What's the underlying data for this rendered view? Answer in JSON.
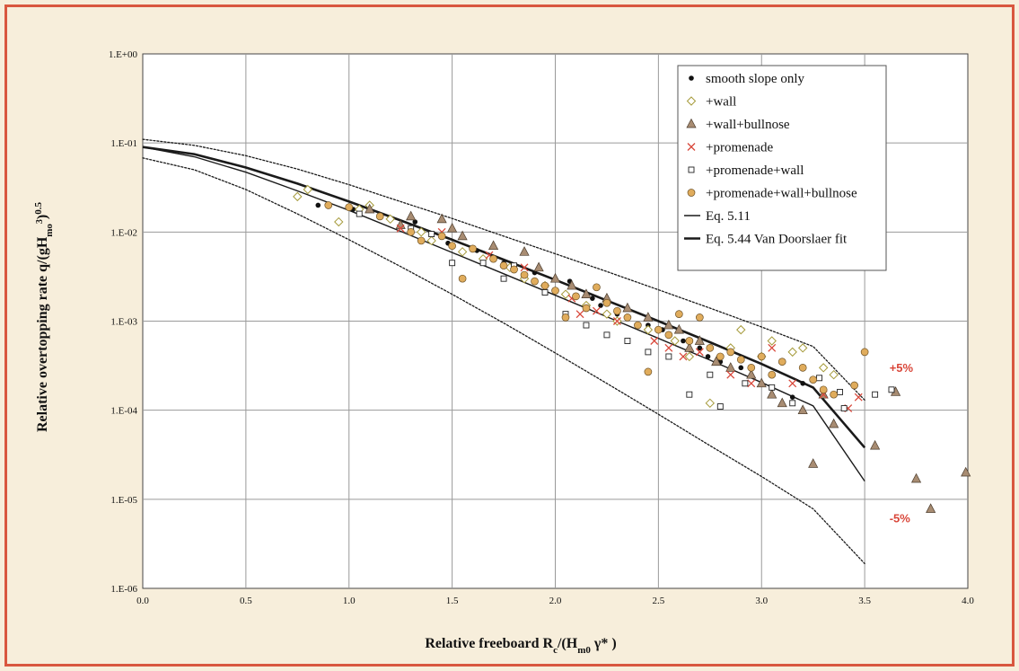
{
  "chart_data": {
    "type": "scatter",
    "x_label": "Relative freeboard",
    "x_label_sym": "R",
    "x_label_sub1": "c",
    "x_label_mid": "/(H",
    "x_label_sub2": "m0",
    "x_label_end": " γ* )",
    "y_label": "Relative overtopping rate q/(gH",
    "y_label_sub": "mo",
    "y_label_sup1": "3",
    "y_label_close": ")",
    "y_label_sup2": "0.5",
    "xlim": [
      0.0,
      4.0
    ],
    "ylim": [
      1e-06,
      1.0
    ],
    "y_scale": "log",
    "grid": true,
    "legend_position": "top-right",
    "x_ticks": [
      {
        "v": 0.0,
        "label": "0.0"
      },
      {
        "v": 0.5,
        "label": "0.5"
      },
      {
        "v": 1.0,
        "label": "1.0"
      },
      {
        "v": 1.5,
        "label": "1.5"
      },
      {
        "v": 2.0,
        "label": "2.0"
      },
      {
        "v": 2.5,
        "label": "2.5"
      },
      {
        "v": 3.0,
        "label": "3.0"
      },
      {
        "v": 3.5,
        "label": "3.5"
      },
      {
        "v": 4.0,
        "label": "4.0"
      }
    ],
    "y_ticks": [
      {
        "v": 1.0,
        "label": "1.E+00"
      },
      {
        "v": 0.1,
        "label": "1.E-01"
      },
      {
        "v": 0.01,
        "label": "1.E-02"
      },
      {
        "v": 0.001,
        "label": "1.E-03"
      },
      {
        "v": 0.0001,
        "label": "1.E-04"
      },
      {
        "v": 1e-05,
        "label": "1.E-05"
      },
      {
        "v": 1e-06,
        "label": "1.E-06"
      }
    ],
    "series": [
      {
        "name": "smooth slope only",
        "marker": "dot",
        "color": "#111111",
        "points": [
          [
            0.85,
            0.02
          ],
          [
            1.02,
            0.018
          ],
          [
            1.32,
            0.013
          ],
          [
            1.48,
            0.0075
          ],
          [
            1.62,
            0.0062
          ],
          [
            1.75,
            0.0045
          ],
          [
            1.9,
            0.0035
          ],
          [
            2.07,
            0.0028
          ],
          [
            2.18,
            0.0018
          ],
          [
            2.22,
            0.0015
          ],
          [
            2.3,
            0.0012
          ],
          [
            2.45,
            0.0009
          ],
          [
            2.52,
            0.0008
          ],
          [
            2.62,
            0.0006
          ],
          [
            2.7,
            0.0005
          ],
          [
            2.74,
            0.0004
          ],
          [
            2.8,
            0.00035
          ],
          [
            2.9,
            0.0003
          ],
          [
            3.15,
            0.00014
          ],
          [
            3.2,
            0.0002
          ]
        ]
      },
      {
        "name": "+wall",
        "marker": "diamond-open",
        "color": "#a59a3a",
        "points": [
          [
            0.75,
            0.025
          ],
          [
            0.8,
            0.03
          ],
          [
            0.95,
            0.013
          ],
          [
            1.05,
            0.018
          ],
          [
            1.1,
            0.02
          ],
          [
            1.2,
            0.014
          ],
          [
            1.35,
            0.01
          ],
          [
            1.4,
            0.008
          ],
          [
            1.55,
            0.006
          ],
          [
            1.65,
            0.005
          ],
          [
            1.78,
            0.004
          ],
          [
            1.85,
            0.003
          ],
          [
            1.95,
            0.0025
          ],
          [
            2.05,
            0.002
          ],
          [
            2.15,
            0.0015
          ],
          [
            2.25,
            0.0012
          ],
          [
            2.3,
            0.001
          ],
          [
            2.45,
            0.0008
          ],
          [
            2.58,
            0.0006
          ],
          [
            2.65,
            0.0004
          ],
          [
            2.75,
            0.00012
          ],
          [
            2.85,
            0.0005
          ],
          [
            2.9,
            0.0008
          ],
          [
            3.0,
            0.0004
          ],
          [
            3.05,
            0.0006
          ],
          [
            3.15,
            0.00045
          ],
          [
            3.2,
            0.0005
          ],
          [
            3.3,
            0.0003
          ],
          [
            3.35,
            0.00025
          ]
        ]
      },
      {
        "name": "+wall+bullnose",
        "marker": "triangle",
        "color": "#a88c72",
        "points": [
          [
            1.1,
            0.018
          ],
          [
            1.25,
            0.012
          ],
          [
            1.3,
            0.015
          ],
          [
            1.45,
            0.014
          ],
          [
            1.5,
            0.011
          ],
          [
            1.55,
            0.009
          ],
          [
            1.7,
            0.007
          ],
          [
            1.85,
            0.006
          ],
          [
            1.92,
            0.004
          ],
          [
            2.0,
            0.003
          ],
          [
            2.08,
            0.0025
          ],
          [
            2.15,
            0.002
          ],
          [
            2.25,
            0.0018
          ],
          [
            2.35,
            0.0014
          ],
          [
            2.45,
            0.0011
          ],
          [
            2.55,
            0.0009
          ],
          [
            2.6,
            0.0008
          ],
          [
            2.65,
            0.0005
          ],
          [
            2.7,
            0.0006
          ],
          [
            2.78,
            0.00035
          ],
          [
            2.85,
            0.0003
          ],
          [
            2.95,
            0.00025
          ],
          [
            3.0,
            0.0002
          ],
          [
            3.05,
            0.00015
          ],
          [
            3.1,
            0.00012
          ],
          [
            3.2,
            0.0001
          ],
          [
            3.25,
            2.5e-05
          ],
          [
            3.3,
            0.00015
          ],
          [
            3.35,
            7e-05
          ],
          [
            3.55,
            4e-05
          ],
          [
            3.65,
            0.00016
          ],
          [
            3.75,
            1.7e-05
          ],
          [
            3.82,
            7.8e-06
          ],
          [
            3.99,
            2e-05
          ]
        ]
      },
      {
        "name": "+promenade",
        "marker": "cross",
        "color": "#d9473a",
        "points": [
          [
            1.25,
            0.011
          ],
          [
            1.45,
            0.01
          ],
          [
            1.68,
            0.0055
          ],
          [
            1.85,
            0.004
          ],
          [
            2.08,
            0.0018
          ],
          [
            2.12,
            0.0012
          ],
          [
            2.2,
            0.0013
          ],
          [
            2.3,
            0.001
          ],
          [
            2.48,
            0.0006
          ],
          [
            2.55,
            0.0005
          ],
          [
            2.62,
            0.0004
          ],
          [
            2.7,
            0.00045
          ],
          [
            2.85,
            0.00025
          ],
          [
            2.95,
            0.0002
          ],
          [
            3.05,
            0.0005
          ],
          [
            3.15,
            0.0002
          ],
          [
            3.3,
            0.00015
          ],
          [
            3.42,
            0.000105
          ],
          [
            3.47,
            0.00014
          ]
        ]
      },
      {
        "name": "+promenade+wall",
        "marker": "square-open",
        "color": "#222222",
        "points": [
          [
            1.05,
            0.016
          ],
          [
            1.3,
            0.011
          ],
          [
            1.4,
            0.0095
          ],
          [
            1.5,
            0.0045
          ],
          [
            1.65,
            0.0045
          ],
          [
            1.75,
            0.003
          ],
          [
            1.8,
            0.0042
          ],
          [
            1.95,
            0.0021
          ],
          [
            2.05,
            0.0012
          ],
          [
            2.15,
            0.0009
          ],
          [
            2.25,
            0.0007
          ],
          [
            2.35,
            0.0006
          ],
          [
            2.45,
            0.00045
          ],
          [
            2.55,
            0.0004
          ],
          [
            2.65,
            0.00015
          ],
          [
            2.75,
            0.00025
          ],
          [
            2.8,
            0.00011
          ],
          [
            2.92,
            0.0002
          ],
          [
            3.05,
            0.00018
          ],
          [
            3.15,
            0.00012
          ],
          [
            3.28,
            0.00023
          ],
          [
            3.38,
            0.00016
          ],
          [
            3.4,
            0.000105
          ],
          [
            3.55,
            0.00015
          ],
          [
            3.63,
            0.00017
          ]
        ]
      },
      {
        "name": "+promenade+wall+bullnose",
        "marker": "circle",
        "color": "#e0ac5c",
        "points": [
          [
            0.9,
            0.02
          ],
          [
            1.0,
            0.019
          ],
          [
            1.15,
            0.015
          ],
          [
            1.3,
            0.01
          ],
          [
            1.35,
            0.008
          ],
          [
            1.45,
            0.009
          ],
          [
            1.5,
            0.007
          ],
          [
            1.55,
            0.003
          ],
          [
            1.6,
            0.0065
          ],
          [
            1.7,
            0.005
          ],
          [
            1.75,
            0.0042
          ],
          [
            1.8,
            0.0038
          ],
          [
            1.85,
            0.0033
          ],
          [
            1.9,
            0.0028
          ],
          [
            1.95,
            0.0025
          ],
          [
            2.0,
            0.0022
          ],
          [
            2.05,
            0.0011
          ],
          [
            2.1,
            0.0019
          ],
          [
            2.15,
            0.0014
          ],
          [
            2.2,
            0.0024
          ],
          [
            2.25,
            0.0016
          ],
          [
            2.3,
            0.0013
          ],
          [
            2.35,
            0.0011
          ],
          [
            2.4,
            0.0009
          ],
          [
            2.45,
            0.00027
          ],
          [
            2.5,
            0.0008
          ],
          [
            2.55,
            0.0007
          ],
          [
            2.6,
            0.0012
          ],
          [
            2.65,
            0.0006
          ],
          [
            2.7,
            0.0011
          ],
          [
            2.75,
            0.0005
          ],
          [
            2.8,
            0.0004
          ],
          [
            2.85,
            0.00045
          ],
          [
            2.9,
            0.00037
          ],
          [
            2.95,
            0.0003
          ],
          [
            3.0,
            0.0004
          ],
          [
            3.05,
            0.00025
          ],
          [
            3.1,
            0.00035
          ],
          [
            3.2,
            0.0003
          ],
          [
            3.25,
            0.00022
          ],
          [
            3.3,
            0.00017
          ],
          [
            3.35,
            0.00015
          ],
          [
            3.45,
            0.00019
          ],
          [
            3.5,
            0.00045
          ]
        ]
      }
    ],
    "lines": [
      {
        "name": "Eq. 5.11",
        "width": 1.4,
        "dash": "",
        "in_legend": true,
        "points": [
          [
            0.0,
            0.09
          ],
          [
            0.25,
            0.07
          ],
          [
            0.5,
            0.047
          ],
          [
            0.75,
            0.029
          ],
          [
            1.0,
            0.0175
          ],
          [
            1.25,
            0.0102
          ],
          [
            1.5,
            0.0059
          ],
          [
            1.75,
            0.0034
          ],
          [
            2.0,
            0.00195
          ],
          [
            2.25,
            0.00112
          ],
          [
            2.5,
            0.00064
          ],
          [
            2.75,
            0.000365
          ],
          [
            3.0,
            0.000205
          ],
          [
            3.25,
            0.000112
          ],
          [
            3.5,
            1.6e-05
          ]
        ]
      },
      {
        "name": "Eq. 5.44 Van Doorslaer fit",
        "width": 2.6,
        "dash": "",
        "in_legend": true,
        "points": [
          [
            0.0,
            0.09
          ],
          [
            0.25,
            0.075
          ],
          [
            0.5,
            0.053
          ],
          [
            0.75,
            0.035
          ],
          [
            1.0,
            0.022
          ],
          [
            1.25,
            0.0135
          ],
          [
            1.5,
            0.0082
          ],
          [
            1.75,
            0.0049
          ],
          [
            2.0,
            0.0029
          ],
          [
            2.25,
            0.0017
          ],
          [
            2.5,
            0.001
          ],
          [
            2.75,
            0.00058
          ],
          [
            3.0,
            0.00033
          ],
          [
            3.25,
            0.00018
          ],
          [
            3.5,
            3.8e-05
          ]
        ]
      },
      {
        "name": "+5%",
        "width": 1.3,
        "dash": "2,2",
        "in_legend": false,
        "points": [
          [
            0.0,
            0.11
          ],
          [
            0.25,
            0.094
          ],
          [
            0.5,
            0.072
          ],
          [
            0.75,
            0.051
          ],
          [
            1.0,
            0.034
          ],
          [
            1.25,
            0.022
          ],
          [
            1.5,
            0.0142
          ],
          [
            1.75,
            0.009
          ],
          [
            2.0,
            0.0057
          ],
          [
            2.25,
            0.0036
          ],
          [
            2.5,
            0.00225
          ],
          [
            2.75,
            0.0014
          ],
          [
            3.0,
            0.00086
          ],
          [
            3.25,
            0.00052
          ],
          [
            3.5,
            0.00013
          ]
        ]
      },
      {
        "name": "-5%",
        "width": 1.3,
        "dash": "2,2",
        "in_legend": false,
        "points": [
          [
            0.0,
            0.068
          ],
          [
            0.25,
            0.05
          ],
          [
            0.5,
            0.03
          ],
          [
            0.75,
            0.016
          ],
          [
            1.0,
            0.0082
          ],
          [
            1.25,
            0.0041
          ],
          [
            1.5,
            0.002
          ],
          [
            1.75,
            0.00095
          ],
          [
            2.0,
            0.00044
          ],
          [
            2.25,
            0.0002
          ],
          [
            2.5,
            9e-05
          ],
          [
            2.75,
            4e-05
          ],
          [
            3.0,
            1.8e-05
          ],
          [
            3.25,
            7.8e-06
          ],
          [
            3.5,
            1.9e-06
          ]
        ]
      }
    ],
    "annotations": [
      {
        "text": "+5%",
        "x": 3.62,
        "y": 0.00027,
        "color": "#d9473a"
      },
      {
        "text": "-5%",
        "x": 3.62,
        "y": 5.5e-06,
        "color": "#d9473a"
      }
    ]
  }
}
